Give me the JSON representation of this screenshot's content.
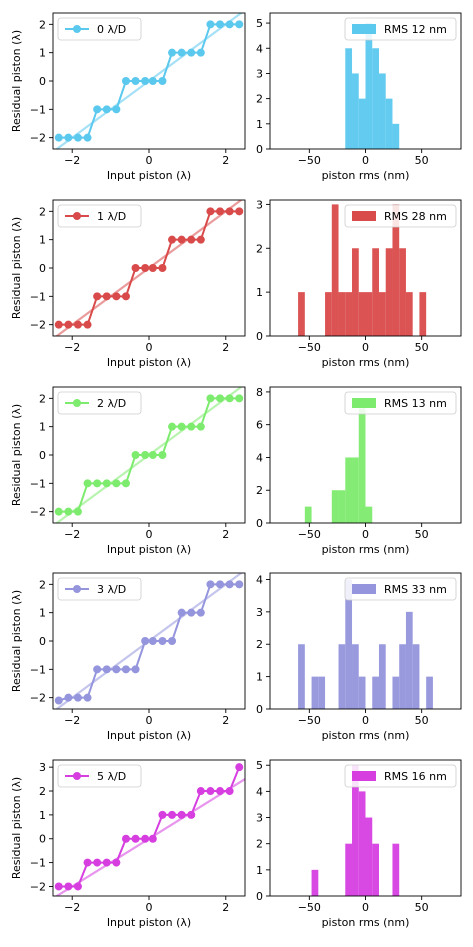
{
  "chart_data": [
    {
      "type": "line",
      "xlabel": "Input piston (λ)",
      "ylabel": "Residual piston (λ)",
      "xlim": [
        -2.5,
        2.5
      ],
      "ylim": [
        -2.4,
        2.4
      ],
      "xticks": [
        -2,
        0,
        2
      ],
      "yticks": [
        -2,
        -1,
        0,
        1,
        2
      ],
      "legend": "0 λ/D",
      "legend_loc": "upper-left",
      "color": "#5bc8ee",
      "x": [
        -2.35,
        -2.1,
        -1.85,
        -1.6,
        -1.35,
        -1.1,
        -0.85,
        -0.6,
        -0.35,
        -0.1,
        0.1,
        0.35,
        0.6,
        0.85,
        1.1,
        1.35,
        1.6,
        1.85,
        2.1,
        2.35
      ],
      "y": [
        -2,
        -2,
        -2,
        -2,
        -1,
        -1,
        -1,
        0,
        0,
        0,
        0,
        0,
        1,
        1,
        1,
        1,
        2,
        2,
        2,
        2
      ],
      "reference": [
        [
          -2.5,
          -2.5
        ],
        [
          2.5,
          2.5
        ]
      ]
    },
    {
      "type": "histogram",
      "xlabel": "piston rms (nm)",
      "xlim": [
        -85,
        85
      ],
      "ylim": [
        0,
        5.4
      ],
      "xticks": [
        -50,
        0,
        50
      ],
      "yticks": [
        0,
        1,
        2,
        3,
        4,
        5
      ],
      "legend": "RMS 12 nm",
      "legend_loc": "upper-right",
      "color": "#5bc8ee",
      "bin_width": 6,
      "bin_starts": [
        -18,
        -12,
        -6,
        0,
        6,
        12,
        18,
        24
      ],
      "counts": [
        4,
        3,
        2,
        5,
        4,
        3,
        2,
        1
      ]
    },
    {
      "type": "line",
      "xlabel": "Input piston (λ)",
      "ylabel": "Residual piston (λ)",
      "xlim": [
        -2.5,
        2.5
      ],
      "ylim": [
        -2.4,
        2.4
      ],
      "xticks": [
        -2,
        0,
        2
      ],
      "yticks": [
        -2,
        -1,
        0,
        1,
        2
      ],
      "legend": "1 λ/D",
      "legend_loc": "upper-left",
      "color": "#d94a4a",
      "x": [
        -2.35,
        -2.1,
        -1.85,
        -1.6,
        -1.35,
        -1.1,
        -0.85,
        -0.6,
        -0.35,
        -0.1,
        0.1,
        0.35,
        0.6,
        0.85,
        1.1,
        1.35,
        1.6,
        1.85,
        2.1,
        2.35
      ],
      "y": [
        -2,
        -2,
        -2,
        -2,
        -1,
        -1,
        -1,
        -1,
        0,
        0,
        0,
        0,
        1,
        1,
        1,
        1,
        2,
        2,
        2,
        2
      ],
      "reference": [
        [
          -2.5,
          -2.5
        ],
        [
          2.5,
          2.5
        ]
      ]
    },
    {
      "type": "histogram",
      "xlabel": "piston rms (nm)",
      "xlim": [
        -85,
        85
      ],
      "ylim": [
        0,
        3.1
      ],
      "xticks": [
        -50,
        0,
        50
      ],
      "yticks": [
        0,
        1,
        2,
        3
      ],
      "legend": "RMS 28 nm",
      "legend_loc": "upper-right",
      "color": "#d94a4a",
      "bin_width": 6,
      "bin_starts": [
        -60,
        -54,
        -48,
        -42,
        -36,
        -30,
        -24,
        -18,
        -12,
        -6,
        0,
        6,
        12,
        18,
        24,
        30,
        36,
        42,
        48
      ],
      "counts": [
        1,
        0,
        0,
        0,
        1,
        3,
        1,
        1,
        2,
        1,
        1,
        2,
        1,
        2,
        3,
        2,
        1,
        0,
        1
      ]
    },
    {
      "type": "line",
      "xlabel": "Input piston (λ)",
      "ylabel": "Residual piston (λ)",
      "xlim": [
        -2.5,
        2.5
      ],
      "ylim": [
        -2.4,
        2.4
      ],
      "xticks": [
        -2,
        0,
        2
      ],
      "yticks": [
        -2,
        -1,
        0,
        1,
        2
      ],
      "legend": "2 λ/D",
      "legend_loc": "upper-left",
      "color": "#7deb6e",
      "x": [
        -2.35,
        -2.1,
        -1.85,
        -1.6,
        -1.35,
        -1.1,
        -0.85,
        -0.6,
        -0.35,
        -0.1,
        0.1,
        0.35,
        0.6,
        0.85,
        1.1,
        1.35,
        1.6,
        1.85,
        2.1,
        2.35
      ],
      "y": [
        -2,
        -2,
        -2,
        -1,
        -1,
        -1,
        -1,
        -1,
        0,
        0,
        0,
        0,
        1,
        1,
        1,
        1,
        2,
        2,
        2,
        2
      ],
      "reference": [
        [
          -2.5,
          -2.5
        ],
        [
          2.5,
          2.5
        ]
      ]
    },
    {
      "type": "histogram",
      "xlabel": "piston rms (nm)",
      "xlim": [
        -85,
        85
      ],
      "ylim": [
        0,
        8.3
      ],
      "xticks": [
        -50,
        0,
        50
      ],
      "yticks": [
        0,
        2,
        4,
        6,
        8
      ],
      "legend": "RMS 13 nm",
      "legend_loc": "upper-right",
      "color": "#7deb6e",
      "bin_width": 6,
      "bin_starts": [
        -54,
        -48,
        -42,
        -36,
        -30,
        -24,
        -18,
        -12,
        -6,
        0
      ],
      "counts": [
        1,
        0,
        0,
        0,
        2,
        2,
        4,
        4,
        7,
        1
      ]
    },
    {
      "type": "line",
      "xlabel": "Input piston (λ)",
      "ylabel": "Residual piston (λ)",
      "xlim": [
        -2.5,
        2.5
      ],
      "ylim": [
        -2.4,
        2.4
      ],
      "xticks": [
        -2,
        0,
        2
      ],
      "yticks": [
        -2,
        -1,
        0,
        1,
        2
      ],
      "legend": "3 λ/D",
      "legend_loc": "upper-left",
      "color": "#9495dc",
      "x": [
        -2.35,
        -2.1,
        -1.85,
        -1.6,
        -1.35,
        -1.1,
        -0.85,
        -0.6,
        -0.35,
        -0.1,
        0.1,
        0.35,
        0.6,
        0.85,
        1.1,
        1.35,
        1.6,
        1.85,
        2.1,
        2.35
      ],
      "y": [
        -2.1,
        -2,
        -2,
        -2,
        -1,
        -1,
        -1,
        -1,
        -1,
        0,
        0,
        0,
        0,
        1,
        1,
        1,
        2,
        2,
        2,
        2
      ],
      "reference": [
        [
          -2.5,
          -2.5
        ],
        [
          2.5,
          2.5
        ]
      ]
    },
    {
      "type": "histogram",
      "xlabel": "piston rms (nm)",
      "xlim": [
        -85,
        85
      ],
      "ylim": [
        0,
        4.2
      ],
      "xticks": [
        -50,
        0,
        50
      ],
      "yticks": [
        0,
        1,
        2,
        3,
        4
      ],
      "legend": "RMS 33 nm",
      "legend_loc": "upper-right",
      "color": "#9495dc",
      "bin_width": 6,
      "bin_starts": [
        -60,
        -54,
        -48,
        -42,
        -36,
        -30,
        -24,
        -18,
        -12,
        -6,
        0,
        6,
        12,
        18,
        24,
        30,
        36,
        42,
        48,
        54
      ],
      "counts": [
        2,
        0,
        1,
        1,
        0,
        0,
        2,
        4,
        2,
        1,
        0,
        1,
        2,
        0,
        1,
        2,
        3,
        2,
        0,
        1
      ]
    },
    {
      "type": "line",
      "xlabel": "Input piston (λ)",
      "ylabel": "Residual piston (λ)",
      "xlim": [
        -2.5,
        2.5
      ],
      "ylim": [
        -2.4,
        3.3
      ],
      "xticks": [
        -2,
        0,
        2
      ],
      "yticks": [
        -2,
        -1,
        0,
        1,
        2,
        3
      ],
      "legend": "5 λ/D",
      "legend_loc": "upper-left",
      "color": "#d63ee0",
      "x": [
        -2.35,
        -2.1,
        -1.85,
        -1.6,
        -1.35,
        -1.1,
        -0.85,
        -0.6,
        -0.35,
        -0.1,
        0.1,
        0.35,
        0.6,
        0.85,
        1.1,
        1.35,
        1.6,
        1.85,
        2.1,
        2.35
      ],
      "y": [
        -2,
        -2,
        -2,
        -1,
        -1,
        -1,
        -1,
        0,
        0,
        0,
        0,
        1,
        1,
        1,
        1,
        2,
        2,
        2,
        2,
        3
      ],
      "reference": [
        [
          -2.5,
          -2.5
        ],
        [
          2.5,
          2.5
        ]
      ]
    },
    {
      "type": "histogram",
      "xlabel": "piston rms (nm)",
      "xlim": [
        -85,
        85
      ],
      "ylim": [
        0,
        5.2
      ],
      "xticks": [
        -50,
        0,
        50
      ],
      "yticks": [
        0,
        1,
        2,
        3,
        4,
        5
      ],
      "legend": "RMS 16 nm",
      "legend_loc": "upper-right",
      "color": "#d63ee0",
      "bin_width": 6,
      "bin_starts": [
        -48,
        -42,
        -36,
        -30,
        -24,
        -18,
        -12,
        -6,
        0,
        6,
        12,
        18,
        24
      ],
      "counts": [
        1,
        0,
        0,
        0,
        0,
        2,
        5,
        4,
        3,
        2,
        0,
        0,
        2
      ]
    }
  ]
}
